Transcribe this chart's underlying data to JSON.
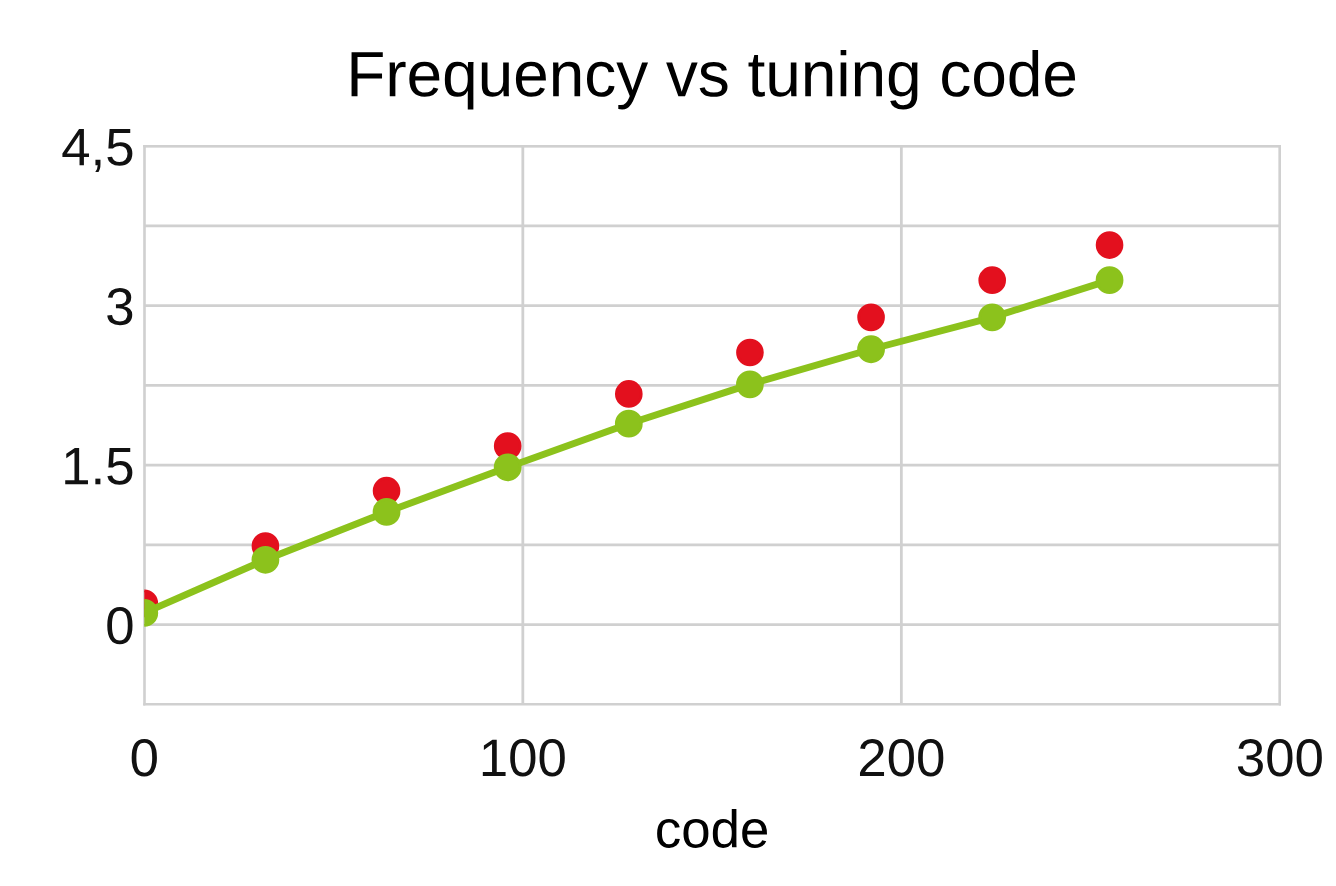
{
  "chart_data": {
    "type": "scatter",
    "title": "Frequency vs tuning code",
    "xlabel": "code",
    "x": [
      0,
      32,
      64,
      96,
      128,
      160,
      192,
      224,
      255
    ],
    "series": [
      {
        "color": "#e3101e",
        "values": [
          0.2,
          0.74,
          1.26,
          1.68,
          2.17,
          2.56,
          2.89,
          3.24,
          3.57
        ]
      },
      {
        "type": "line",
        "color": "#8cc21c",
        "values": [
          0.11,
          0.61,
          1.06,
          1.48,
          1.89,
          2.26,
          2.59,
          2.89,
          3.24
        ]
      }
    ],
    "marker": "circle",
    "xlim": [
      0,
      300
    ],
    "xticks": [
      0,
      100,
      200,
      300
    ],
    "ylim": [
      -0.75,
      4.5
    ],
    "yticks": [
      {
        "value": -0.75,
        "label": null
      },
      0,
      {
        "value": 0.75,
        "label": null
      },
      1.5,
      {
        "value": 2.25,
        "label": null
      },
      3,
      {
        "value": 3.75,
        "label": null
      },
      {
        "value": 4.5,
        "label": "4,5"
      }
    ],
    "grid": true
  }
}
